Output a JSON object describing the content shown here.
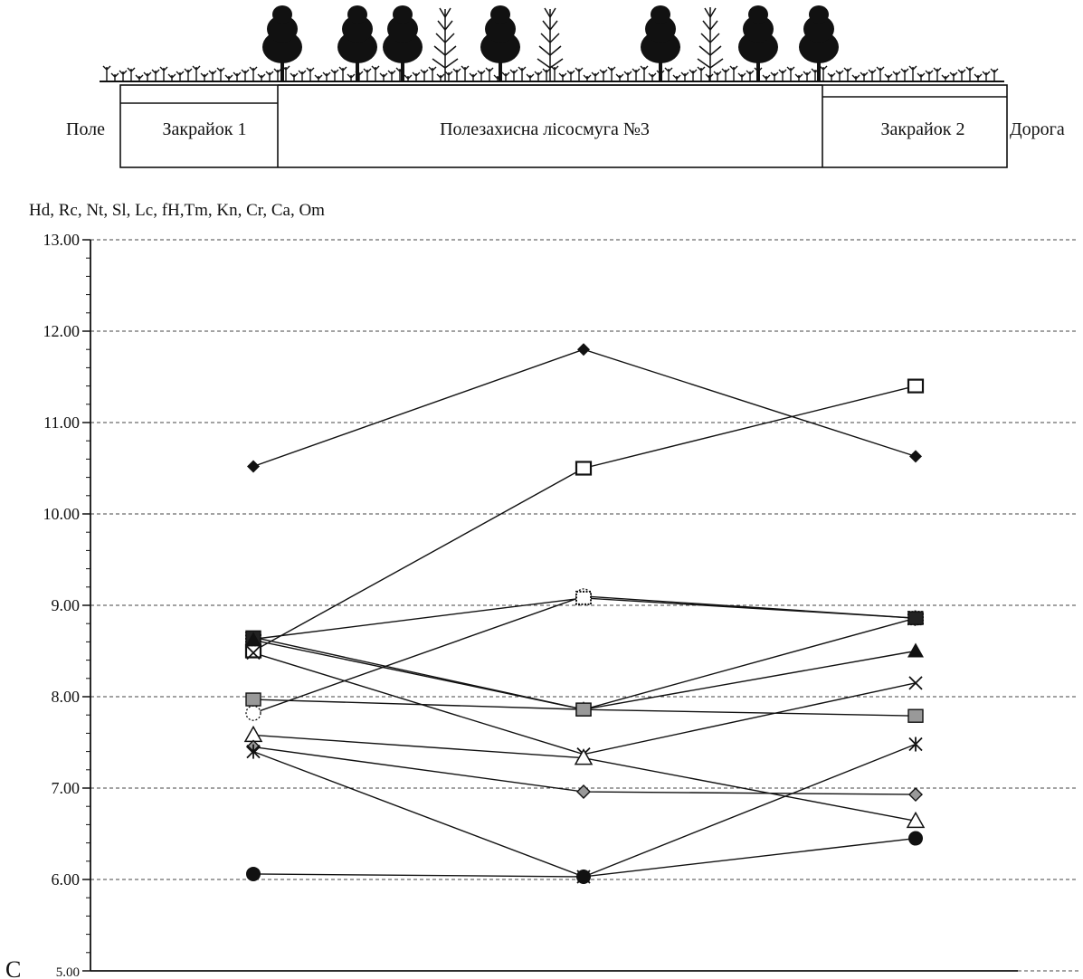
{
  "profile": {
    "left_outside": "Поле",
    "right_outside": "Дорога",
    "zones": [
      "Закрайок 1",
      "Полезахисна лісосмуга №3",
      "Закрайок 2"
    ]
  },
  "chart_data": {
    "type": "line",
    "ylabel": "Hd, Rc, Nt, Sl, Lc, fH,Tm, Kn, Cr, Ca, Om",
    "corner_label": "C",
    "ylim": [
      5,
      13
    ],
    "y_ticks": [
      "5.00",
      "6.00",
      "7.00",
      "8.00",
      "9.00",
      "10.00",
      "11.00",
      "12.00",
      "13.00"
    ],
    "grid": true,
    "x_positions": 3,
    "series": [
      {
        "marker": "diamond-black",
        "values": [
          10.52,
          11.8,
          10.63
        ]
      },
      {
        "marker": "square-open",
        "values": [
          8.5,
          10.5,
          11.4
        ]
      },
      {
        "marker": "circle-dotted",
        "values": [
          7.82,
          9.1,
          8.86
        ]
      },
      {
        "marker": "square-dotted",
        "values": [
          8.63,
          9.08,
          8.86
        ]
      },
      {
        "marker": "square-black",
        "values": [
          8.65,
          7.86,
          8.86
        ]
      },
      {
        "marker": "triangle-black",
        "values": [
          8.62,
          7.86,
          8.5
        ]
      },
      {
        "marker": "cross",
        "values": [
          8.48,
          7.37,
          8.15
        ]
      },
      {
        "marker": "square-gray",
        "values": [
          7.97,
          7.86,
          7.79
        ]
      },
      {
        "marker": "triangle-open",
        "values": [
          7.58,
          7.33,
          6.64
        ]
      },
      {
        "marker": "diamond-gray",
        "values": [
          7.45,
          6.96,
          6.93
        ]
      },
      {
        "marker": "asterisk",
        "values": [
          7.4,
          6.03,
          7.48
        ]
      },
      {
        "marker": "circle-black",
        "values": [
          6.06,
          6.03,
          6.45
        ]
      }
    ]
  }
}
